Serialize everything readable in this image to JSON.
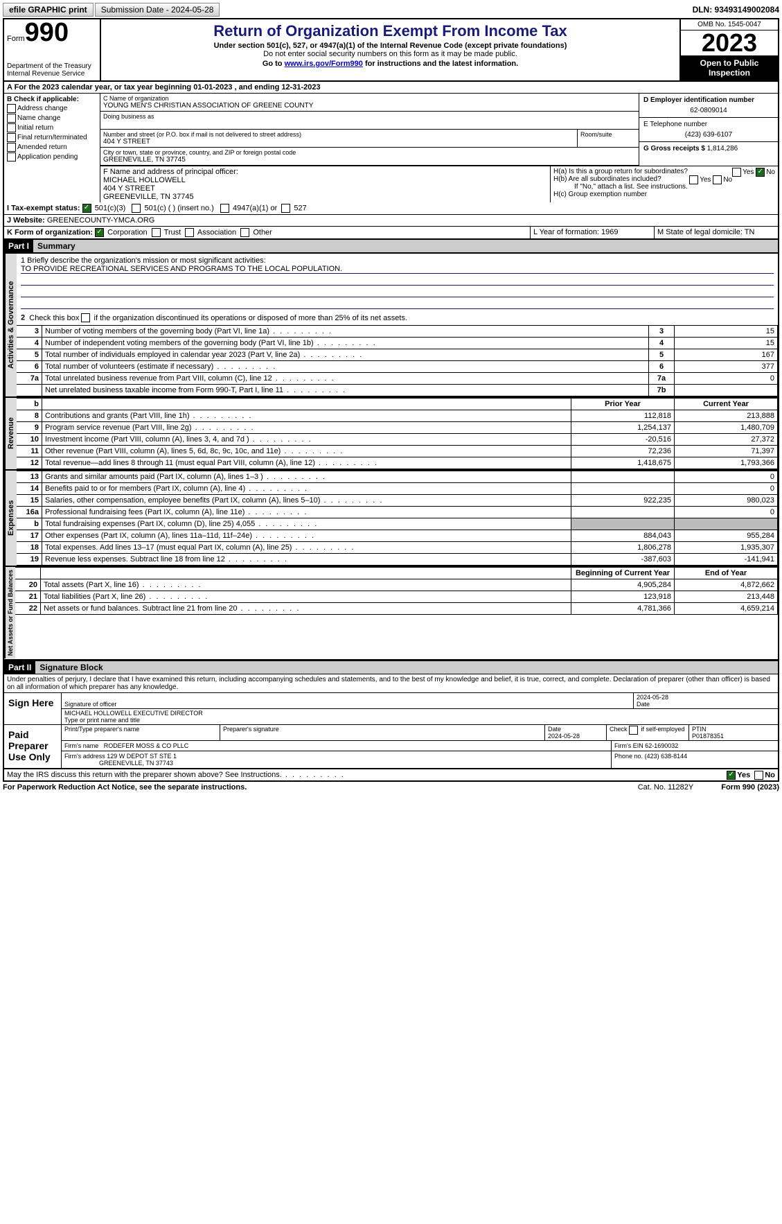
{
  "topbar": {
    "efile": "efile GRAPHIC print",
    "submission_label": "Submission Date - 2024-05-28",
    "dln_label": "DLN: 93493149002084"
  },
  "header": {
    "form_word": "Form",
    "form_no": "990",
    "dept": "Department of the Treasury Internal Revenue Service",
    "title": "Return of Organization Exempt From Income Tax",
    "sub": "Under section 501(c), 527, or 4947(a)(1) of the Internal Revenue Code (except private foundations)",
    "sub2": "Do not enter social security numbers on this form as it may be made public.",
    "goto_pre": "Go to ",
    "goto_link": "www.irs.gov/Form990",
    "goto_post": " for instructions and the latest information.",
    "omb": "OMB No. 1545-0047",
    "year": "2023",
    "open": "Open to Public Inspection"
  },
  "line_a": "For the 2023 calendar year, or tax year beginning 01-01-2023   , and ending 12-31-2023",
  "box_b": {
    "title": "B Check if applicable:",
    "opts": [
      "Address change",
      "Name change",
      "Initial return",
      "Final return/terminated",
      "Amended return",
      "Application pending"
    ]
  },
  "box_c": {
    "name_lbl": "C Name of organization",
    "name": "YOUNG MEN'S CHRISTIAN ASSOCIATION OF GREENE COUNTY",
    "dba_lbl": "Doing business as",
    "addr_lbl": "Number and street (or P.O. box if mail is not delivered to street address)",
    "room_lbl": "Room/suite",
    "addr": "404 Y STREET",
    "city_lbl": "City or town, state or province, country, and ZIP or foreign postal code",
    "city": "GREENEVILLE, TN  37745"
  },
  "box_d": {
    "lbl": "D Employer identification number",
    "val": "62-0809014"
  },
  "box_e": {
    "lbl": "E Telephone number",
    "val": "(423) 639-6107"
  },
  "box_g": {
    "lbl": "G Gross receipts $",
    "val": "1,814,286"
  },
  "box_f": {
    "lbl": "F  Name and address of principal officer:",
    "name": "MICHAEL HOLLOWELL",
    "addr1": "404 Y STREET",
    "addr2": "GREENEVILLE, TN  37745"
  },
  "box_h": {
    "a": "H(a)  Is this a group return for subordinates?",
    "b": "H(b)  Are all subordinates included?",
    "b2": "If \"No,\" attach a list. See instructions.",
    "c": "H(c)  Group exemption number"
  },
  "box_i": {
    "lbl": "I   Tax-exempt status:",
    "o1": "501(c)(3)",
    "o2": "501(c) (  ) (insert no.)",
    "o3": "4947(a)(1) or",
    "o4": "527"
  },
  "box_j": {
    "lbl": "J   Website:",
    "val": " GREENECOUNTY-YMCA.ORG"
  },
  "box_k": {
    "lbl": "K Form of organization:",
    "o1": "Corporation",
    "o2": "Trust",
    "o3": "Association",
    "o4": "Other"
  },
  "box_l": "L Year of formation: 1969",
  "box_m": "M State of legal domicile: TN",
  "part1": {
    "hdr": "Part I",
    "title": "Summary"
  },
  "mission": {
    "lbl": "1   Briefly describe the organization's mission or most significant activities:",
    "txt": "TO PROVIDE RECREATIONAL SERVICES AND PROGRAMS TO THE LOCAL POPULATION."
  },
  "line2": "Check this box      if the organization discontinued its operations or disposed of more than 25% of its net assets.",
  "gov_lines": [
    {
      "n": "3",
      "d": "Number of voting members of the governing body (Part VI, line 1a)",
      "b": "3",
      "v": "15"
    },
    {
      "n": "4",
      "d": "Number of independent voting members of the governing body (Part VI, line 1b)",
      "b": "4",
      "v": "15"
    },
    {
      "n": "5",
      "d": "Total number of individuals employed in calendar year 2023 (Part V, line 2a)",
      "b": "5",
      "v": "167"
    },
    {
      "n": "6",
      "d": "Total number of volunteers (estimate if necessary)",
      "b": "6",
      "v": "377"
    },
    {
      "n": "7a",
      "d": "Total unrelated business revenue from Part VIII, column (C), line 12",
      "b": "7a",
      "v": "0"
    },
    {
      "n": "",
      "d": "Net unrelated business taxable income from Form 990-T, Part I, line 11",
      "b": "7b",
      "v": ""
    }
  ],
  "cols": {
    "b": "b",
    "prior": "Prior Year",
    "curr": "Current Year"
  },
  "rev_lines": [
    {
      "n": "8",
      "d": "Contributions and grants (Part VIII, line 1h)",
      "p": "112,818",
      "c": "213,888"
    },
    {
      "n": "9",
      "d": "Program service revenue (Part VIII, line 2g)",
      "p": "1,254,137",
      "c": "1,480,709"
    },
    {
      "n": "10",
      "d": "Investment income (Part VIII, column (A), lines 3, 4, and 7d )",
      "p": "-20,516",
      "c": "27,372"
    },
    {
      "n": "11",
      "d": "Other revenue (Part VIII, column (A), lines 5, 6d, 8c, 9c, 10c, and 11e)",
      "p": "72,236",
      "c": "71,397"
    },
    {
      "n": "12",
      "d": "Total revenue—add lines 8 through 11 (must equal Part VIII, column (A), line 12)",
      "p": "1,418,675",
      "c": "1,793,366"
    }
  ],
  "exp_lines": [
    {
      "n": "13",
      "d": "Grants and similar amounts paid (Part IX, column (A), lines 1–3 )",
      "p": "",
      "c": "0"
    },
    {
      "n": "14",
      "d": "Benefits paid to or for members (Part IX, column (A), line 4)",
      "p": "",
      "c": "0"
    },
    {
      "n": "15",
      "d": "Salaries, other compensation, employee benefits (Part IX, column (A), lines 5–10)",
      "p": "922,235",
      "c": "980,023"
    },
    {
      "n": "16a",
      "d": "Professional fundraising fees (Part IX, column (A), line 11e)",
      "p": "",
      "c": "0"
    },
    {
      "n": "b",
      "d": "Total fundraising expenses (Part IX, column (D), line 25) 4,055",
      "p": "GRAY",
      "c": "GRAY"
    },
    {
      "n": "17",
      "d": "Other expenses (Part IX, column (A), lines 11a–11d, 11f–24e)",
      "p": "884,043",
      "c": "955,284"
    },
    {
      "n": "18",
      "d": "Total expenses. Add lines 13–17 (must equal Part IX, column (A), line 25)",
      "p": "1,806,278",
      "c": "1,935,307"
    },
    {
      "n": "19",
      "d": "Revenue less expenses. Subtract line 18 from line 12",
      "p": "-387,603",
      "c": "-141,941"
    }
  ],
  "na_cols": {
    "beg": "Beginning of Current Year",
    "end": "End of Year"
  },
  "na_lines": [
    {
      "n": "20",
      "d": "Total assets (Part X, line 16)",
      "p": "4,905,284",
      "c": "4,872,662"
    },
    {
      "n": "21",
      "d": "Total liabilities (Part X, line 26)",
      "p": "123,918",
      "c": "213,448"
    },
    {
      "n": "22",
      "d": "Net assets or fund balances. Subtract line 21 from line 20",
      "p": "4,781,366",
      "c": "4,659,214"
    }
  ],
  "part2": {
    "hdr": "Part II",
    "title": "Signature Block"
  },
  "perjury": "Under penalties of perjury, I declare that I have examined this return, including accompanying schedules and statements, and to the best of my knowledge and belief, it is true, correct, and complete. Declaration of preparer (other than officer) is based on all information of which preparer has any knowledge.",
  "sign": {
    "here": "Sign Here",
    "date": "2024-05-28",
    "sig_lbl": "Signature of officer",
    "date_lbl": "Date",
    "officer": "MICHAEL HOLLOWELL  EXECUTIVE DIRECTOR",
    "type_lbl": "Type or print name and title"
  },
  "paid": {
    "title": "Paid Preparer Use Only",
    "name_lbl": "Print/Type preparer's name",
    "sig_lbl": "Preparer's signature",
    "date_lbl": "Date",
    "date": "2024-05-28",
    "check_lbl": "Check       if self-employed",
    "ptin_lbl": "PTIN",
    "ptin": "P01878351",
    "firm_name_lbl": "Firm's name",
    "firm_name": "RODEFER MOSS & CO PLLC",
    "firm_ein_lbl": "Firm's EIN",
    "firm_ein": "62-1690032",
    "firm_addr_lbl": "Firm's address",
    "firm_addr": "129 W DEPOT ST STE 1",
    "firm_city": "GREENEVILLE, TN  37743",
    "phone_lbl": "Phone no.",
    "phone": "(423) 638-8144"
  },
  "discuss": "May the IRS discuss this return with the preparer shown above? See Instructions.",
  "footer": {
    "l": "For Paperwork Reduction Act Notice, see the separate instructions.",
    "m": "Cat. No. 11282Y",
    "r": "Form 990 (2023)"
  },
  "vtabs": {
    "gov": "Activities & Governance",
    "rev": "Revenue",
    "exp": "Expenses",
    "na": "Net Assets or Fund Balances"
  }
}
